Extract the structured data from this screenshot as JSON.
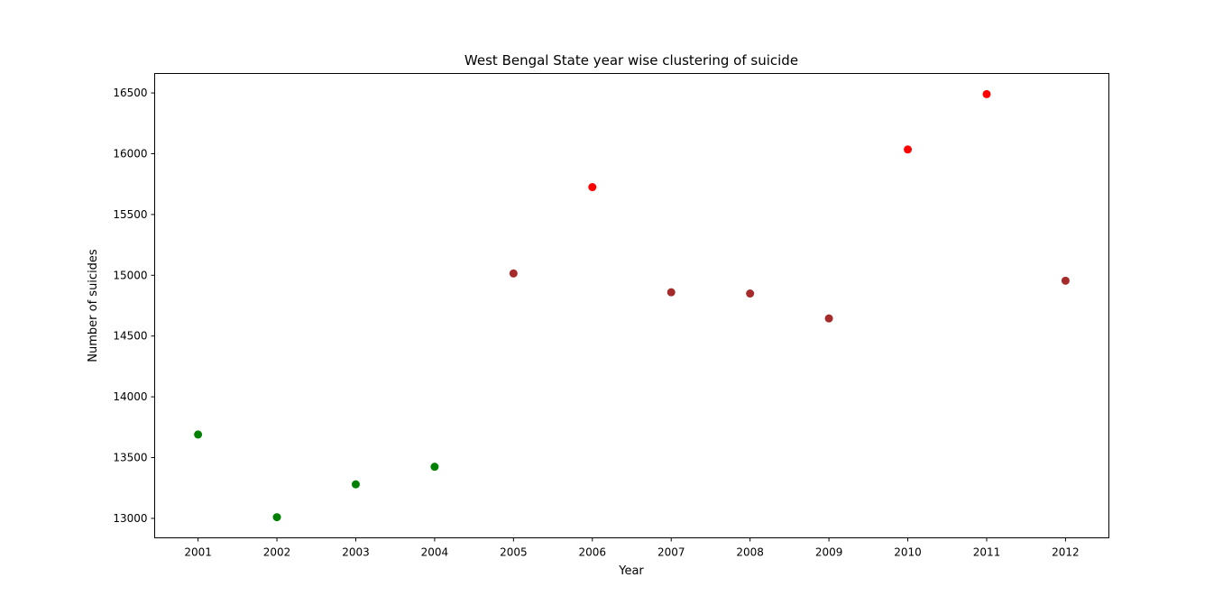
{
  "chart_data": {
    "type": "scatter",
    "title": "West Bengal State year wise clustering of suicide",
    "xlabel": "Year",
    "ylabel": "Number of suicides",
    "x_ticks": [
      2001,
      2002,
      2003,
      2004,
      2005,
      2006,
      2007,
      2008,
      2009,
      2010,
      2011,
      2012
    ],
    "y_ticks": [
      13000,
      13500,
      14000,
      14500,
      15000,
      15500,
      16000,
      16500
    ],
    "xlim": [
      2000.45,
      2012.55
    ],
    "ylim": [
      12840,
      16660
    ],
    "grid": false,
    "points": [
      {
        "x": 2001,
        "y": 13690,
        "color": "#008000"
      },
      {
        "x": 2002,
        "y": 13010,
        "color": "#008000"
      },
      {
        "x": 2003,
        "y": 13280,
        "color": "#008000"
      },
      {
        "x": 2004,
        "y": 13425,
        "color": "#008000"
      },
      {
        "x": 2005,
        "y": 15015,
        "color": "#a52a2a"
      },
      {
        "x": 2006,
        "y": 15725,
        "color": "#ff0000"
      },
      {
        "x": 2007,
        "y": 14860,
        "color": "#a52a2a"
      },
      {
        "x": 2008,
        "y": 14850,
        "color": "#a52a2a"
      },
      {
        "x": 2009,
        "y": 14645,
        "color": "#a52a2a"
      },
      {
        "x": 2010,
        "y": 16035,
        "color": "#ff0000"
      },
      {
        "x": 2011,
        "y": 16490,
        "color": "#ff0000"
      },
      {
        "x": 2012,
        "y": 14955,
        "color": "#a52a2a"
      }
    ]
  }
}
